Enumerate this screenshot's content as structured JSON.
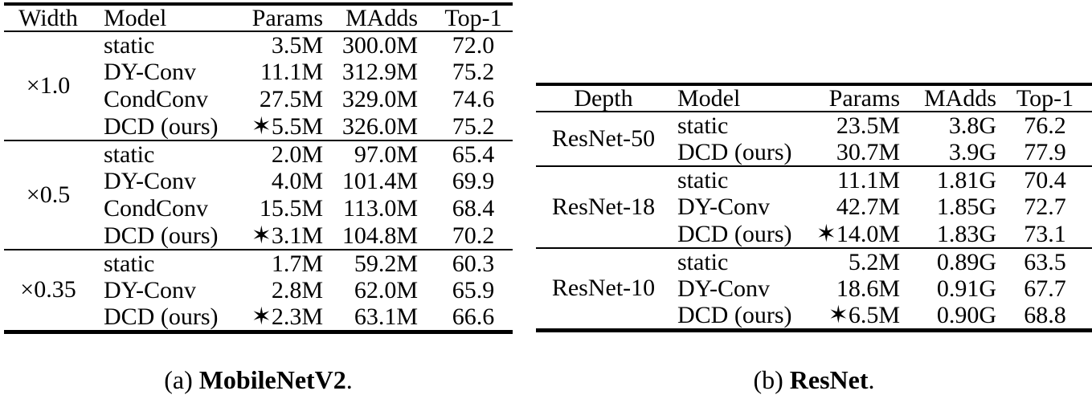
{
  "colors": {
    "text": "#000000",
    "background": "#ffffff",
    "rule": "#000000"
  },
  "star_glyph": "✶",
  "tables": [
    {
      "id": "mobilenetv2",
      "caption": {
        "index": "(a)",
        "title": "MobileNetV2",
        "suffix": "."
      },
      "columns": [
        "Width",
        "Model",
        "Params",
        "MAdds",
        "Top-1"
      ],
      "groups": [
        {
          "label": "×1.0",
          "rows": [
            {
              "model": "static",
              "star": false,
              "params": "3.5M",
              "madds": "300.0M",
              "top1": "72.0",
              "top1_bold": false
            },
            {
              "model": "DY-Conv",
              "star": false,
              "params": "11.1M",
              "madds": "312.9M",
              "top1": "75.2",
              "top1_bold": true
            },
            {
              "model": "CondConv",
              "star": false,
              "params": "27.5M",
              "madds": "329.0M",
              "top1": "74.6",
              "top1_bold": false
            },
            {
              "model": "DCD (ours)",
              "star": true,
              "params": "5.5M",
              "madds": "326.0M",
              "top1": "75.2",
              "top1_bold": true
            }
          ]
        },
        {
          "label": "×0.5",
          "rows": [
            {
              "model": "static",
              "star": false,
              "params": "2.0M",
              "madds": "97.0M",
              "top1": "65.4",
              "top1_bold": false
            },
            {
              "model": "DY-Conv",
              "star": false,
              "params": "4.0M",
              "madds": "101.4M",
              "top1": "69.9",
              "top1_bold": false
            },
            {
              "model": "CondConv",
              "star": false,
              "params": "15.5M",
              "madds": "113.0M",
              "top1": "68.4",
              "top1_bold": false
            },
            {
              "model": "DCD (ours)",
              "star": true,
              "params": "3.1M",
              "madds": "104.8M",
              "top1": "70.2",
              "top1_bold": true
            }
          ]
        },
        {
          "label": "×0.35",
          "rows": [
            {
              "model": "static",
              "star": false,
              "params": "1.7M",
              "madds": "59.2M",
              "top1": "60.3",
              "top1_bold": false
            },
            {
              "model": "DY-Conv",
              "star": false,
              "params": "2.8M",
              "madds": "62.0M",
              "top1": "65.9",
              "top1_bold": false
            },
            {
              "model": "DCD (ours)",
              "star": true,
              "params": "2.3M",
              "madds": "63.1M",
              "top1": "66.6",
              "top1_bold": true
            }
          ]
        }
      ]
    },
    {
      "id": "resnet",
      "caption": {
        "index": "(b)",
        "title": "ResNet",
        "suffix": "."
      },
      "columns": [
        "Depth",
        "Model",
        "Params",
        "MAdds",
        "Top-1"
      ],
      "groups": [
        {
          "label": "ResNet-50",
          "rows": [
            {
              "model": "static",
              "star": false,
              "params": "23.5M",
              "madds": "3.8G",
              "top1": "76.2",
              "top1_bold": false
            },
            {
              "model": "DCD (ours)",
              "star": false,
              "params": "30.7M",
              "madds": "3.9G",
              "top1": "77.9",
              "top1_bold": true
            }
          ]
        },
        {
          "label": "ResNet-18",
          "rows": [
            {
              "model": "static",
              "star": false,
              "params": "11.1M",
              "madds": "1.81G",
              "top1": "70.4",
              "top1_bold": false
            },
            {
              "model": "DY-Conv",
              "star": false,
              "params": "42.7M",
              "madds": "1.85G",
              "top1": "72.7",
              "top1_bold": false
            },
            {
              "model": "DCD (ours)",
              "star": true,
              "params": "14.0M",
              "madds": "1.83G",
              "top1": "73.1",
              "top1_bold": true
            }
          ]
        },
        {
          "label": "ResNet-10",
          "rows": [
            {
              "model": "static",
              "star": false,
              "params": "5.2M",
              "madds": "0.89G",
              "top1": "63.5",
              "top1_bold": false
            },
            {
              "model": "DY-Conv",
              "star": false,
              "params": "18.6M",
              "madds": "0.91G",
              "top1": "67.7",
              "top1_bold": false
            },
            {
              "model": "DCD (ours)",
              "star": true,
              "params": "6.5M",
              "madds": "0.90G",
              "top1": "68.8",
              "top1_bold": true
            }
          ]
        }
      ]
    }
  ]
}
